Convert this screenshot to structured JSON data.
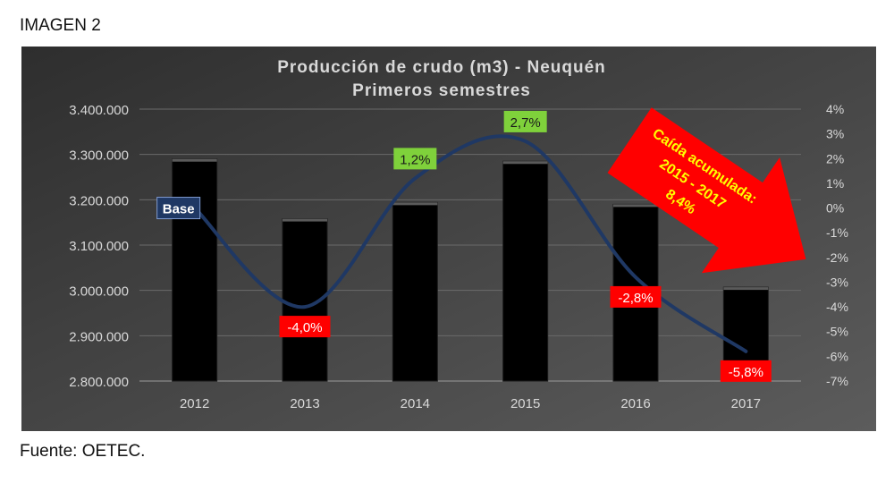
{
  "page": {
    "header_label": "IMAGEN 2",
    "footer_label": "Fuente: OETEC."
  },
  "chart_data": {
    "type": "bar",
    "title": "Producción de crudo (m3) - Neuquén",
    "subtitle": "Primeros semestres",
    "categories": [
      "2012",
      "2013",
      "2014",
      "2015",
      "2016",
      "2017"
    ],
    "series": [
      {
        "axis": "left",
        "values": [
          3290000,
          3158000,
          3194000,
          3285000,
          3190000,
          3007000
        ]
      },
      {
        "axis": "right",
        "type": "line",
        "values": [
          0,
          -4.0,
          1.2,
          2.7,
          -2.8,
          -5.8
        ]
      }
    ],
    "point_labels": [
      "Base",
      "-4,0%",
      "1,2%",
      "2,7%",
      "-2,8%",
      "-5,8%"
    ],
    "point_label_colors": [
      "#1f3864",
      "#ff0000",
      "#7fd13b",
      "#7fd13b",
      "#ff0000",
      "#ff0000"
    ],
    "y_left": {
      "min": 2800000,
      "max": 3400000,
      "step": 100000,
      "ticks": [
        "2.800.000",
        "2.900.000",
        "3.000.000",
        "3.100.000",
        "3.200.000",
        "3.300.000",
        "3.400.000"
      ]
    },
    "y_right": {
      "min": -7,
      "max": 4,
      "step": 1,
      "ticks": [
        "-7%",
        "-6%",
        "-5%",
        "-4%",
        "-3%",
        "-2%",
        "-1%",
        "0%",
        "1%",
        "2%",
        "3%",
        "4%"
      ]
    },
    "annotation": {
      "lines": [
        "Caída acumulada:",
        "2015 - 2017",
        "8,4%"
      ],
      "arrow_color": "#ff0000",
      "text_color": "#ffff00"
    },
    "colors": {
      "background_start": "#2e2e2e",
      "background_end": "#5c5c5c",
      "bar": "#000000",
      "line": "#1f3864",
      "grid": "#6a6a6a",
      "text": "#d9d9d9"
    },
    "grid": true
  }
}
